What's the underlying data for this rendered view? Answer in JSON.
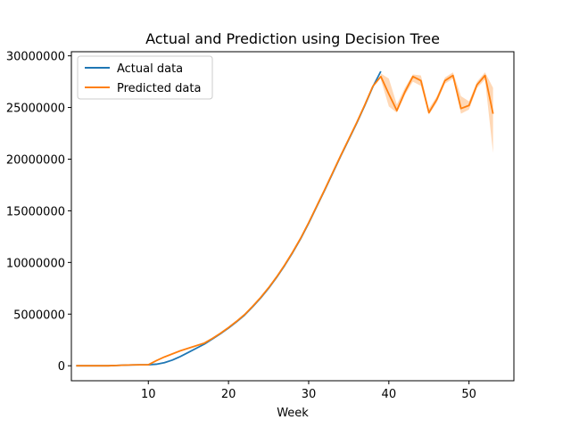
{
  "chart_data": {
    "type": "line",
    "title": "Actual and Prediction using Decision Tree",
    "xlabel": "Week",
    "ylabel": "",
    "xlim": [
      0.4,
      55.6
    ],
    "ylim": [
      -1450000,
      30400000
    ],
    "xticks": [
      10,
      20,
      30,
      40,
      50
    ],
    "yticks": [
      0,
      5000000,
      10000000,
      15000000,
      20000000,
      25000000,
      30000000
    ],
    "xtick_labels": [
      "10",
      "20",
      "30",
      "40",
      "50"
    ],
    "ytick_labels": [
      "0",
      "5000000",
      "10000000",
      "15000000",
      "20000000",
      "25000000",
      "30000000"
    ],
    "legend_position": "top-left",
    "grid": false,
    "series": [
      {
        "name": "Actual data",
        "color": "#1f77b4",
        "x": [
          1,
          2,
          3,
          4,
          5,
          6,
          7,
          8,
          9,
          10,
          11,
          12,
          13,
          14,
          15,
          16,
          17,
          18,
          19,
          20,
          21,
          22,
          23,
          24,
          25,
          26,
          27,
          28,
          29,
          30,
          31,
          32,
          33,
          34,
          35,
          36,
          37,
          38,
          39
        ],
        "y": [
          0,
          0,
          0,
          0,
          0,
          30000,
          60000,
          80000,
          90000,
          100000,
          150000,
          300000,
          550000,
          900000,
          1300000,
          1700000,
          2100000,
          2600000,
          3100000,
          3650000,
          4250000,
          4900000,
          5700000,
          6550000,
          7500000,
          8550000,
          9700000,
          10950000,
          12300000,
          13800000,
          15400000,
          17000000,
          18650000,
          20300000,
          21900000,
          23500000,
          25200000,
          27000000,
          28500000
        ]
      },
      {
        "name": "Predicted data",
        "color": "#ff7f0e",
        "x": [
          1,
          2,
          3,
          4,
          5,
          6,
          7,
          8,
          9,
          10,
          11,
          12,
          13,
          14,
          15,
          16,
          17,
          18,
          19,
          20,
          21,
          22,
          23,
          24,
          25,
          26,
          27,
          28,
          29,
          30,
          31,
          32,
          33,
          34,
          35,
          36,
          37,
          38,
          39,
          40,
          41,
          42,
          43,
          44,
          45,
          46,
          47,
          48,
          49,
          50,
          51,
          52,
          53
        ],
        "y": [
          0,
          0,
          0,
          0,
          0,
          30000,
          60000,
          80000,
          90000,
          100000,
          500000,
          850000,
          1150000,
          1450000,
          1700000,
          1950000,
          2200000,
          2650000,
          3150000,
          3700000,
          4300000,
          4950000,
          5750000,
          6600000,
          7550000,
          8600000,
          9750000,
          11000000,
          12350000,
          13850000,
          15450000,
          17050000,
          18700000,
          20350000,
          21950000,
          23550000,
          25250000,
          27050000,
          28000000,
          26300000,
          24700000,
          26500000,
          28000000,
          27600000,
          24500000,
          25800000,
          27600000,
          28100000,
          24900000,
          25200000,
          27200000,
          28100000,
          24400000
        ]
      }
    ],
    "band": {
      "color": "#ff7f0e",
      "x": [
        39,
        40,
        41,
        42,
        43,
        44,
        45,
        46,
        47,
        48,
        49,
        50,
        51,
        52,
        53
      ],
      "lower": [
        27700000,
        25100000,
        24500000,
        26200000,
        27500000,
        27100000,
        24300000,
        25500000,
        27300000,
        27800000,
        24400000,
        24800000,
        26900000,
        27700000,
        20600000
      ],
      "upper": [
        28300000,
        27800000,
        25300000,
        26900000,
        28200000,
        28100000,
        24900000,
        26100000,
        27900000,
        28400000,
        26100000,
        25600000,
        27500000,
        28400000,
        26900000
      ]
    }
  }
}
